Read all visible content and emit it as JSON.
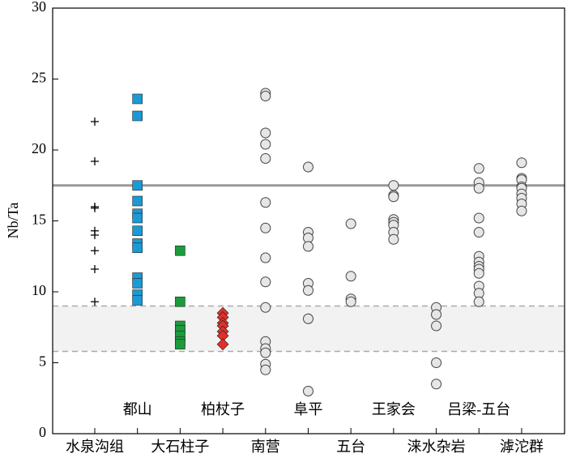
{
  "chart_data": {
    "type": "strip",
    "ylabel": "Nb/Ta",
    "ylim": [
      0,
      30
    ],
    "yticks": [
      0,
      5,
      10,
      15,
      20,
      25,
      30
    ],
    "reference_line": 17.5,
    "band": [
      5.8,
      9.0
    ],
    "series": [
      {
        "name": "水泉沟组",
        "marker": "plus",
        "color": "#000000",
        "values": [
          22.0,
          19.2,
          16.0,
          15.9,
          14.3,
          14.0,
          12.9,
          11.6,
          9.3
        ]
      },
      {
        "name": "都山",
        "marker": "square",
        "color": "#1a9ad6",
        "values": [
          23.6,
          22.4,
          17.5,
          16.4,
          15.5,
          15.2,
          14.3,
          13.4,
          13.1,
          11.0,
          10.6,
          9.8,
          9.4
        ]
      },
      {
        "name": "大石柱子",
        "marker": "square",
        "color": "#1c9a3e",
        "values": [
          12.9,
          9.3,
          7.6,
          7.3,
          6.9,
          6.5,
          6.3
        ]
      },
      {
        "name": "柏杖子",
        "marker": "diamond",
        "color": "#e0302a",
        "values": [
          8.5,
          8.2,
          7.8,
          7.6,
          7.2,
          6.9,
          6.3
        ]
      },
      {
        "name": "南营",
        "marker": "circle",
        "color": "#e6e6e6",
        "values": [
          24.0,
          23.8,
          21.2,
          20.4,
          19.4,
          16.3,
          14.5,
          12.4,
          10.7,
          8.9,
          6.5,
          6.0,
          5.7,
          4.9,
          4.5
        ]
      },
      {
        "name": "阜平",
        "marker": "circle",
        "color": "#e6e6e6",
        "values": [
          18.8,
          14.2,
          13.8,
          13.2,
          10.6,
          10.1,
          8.1,
          3.0
        ]
      },
      {
        "name": "五台",
        "marker": "circle",
        "color": "#e6e6e6",
        "values": [
          14.8,
          11.1,
          9.5,
          9.3
        ]
      },
      {
        "name": "王家会",
        "marker": "circle",
        "color": "#e6e6e6",
        "values": [
          17.5,
          16.8,
          16.7,
          15.1,
          14.9,
          14.7,
          14.2,
          13.7
        ]
      },
      {
        "name": "涞水杂岩",
        "marker": "circle",
        "color": "#e6e6e6",
        "values": [
          8.9,
          8.4,
          7.6,
          5.0,
          3.5
        ]
      },
      {
        "name": "吕梁-五台",
        "marker": "circle",
        "color": "#e6e6e6",
        "values": [
          18.7,
          17.7,
          17.3,
          15.2,
          14.2,
          12.5,
          12.1,
          11.8,
          11.6,
          11.3,
          10.4,
          9.9,
          9.3
        ]
      },
      {
        "name": "滹沱群",
        "marker": "circle",
        "color": "#e6e6e6",
        "values": [
          19.1,
          18.0,
          17.9,
          17.4,
          17.3,
          16.9,
          16.6,
          16.2,
          15.7
        ]
      }
    ]
  }
}
